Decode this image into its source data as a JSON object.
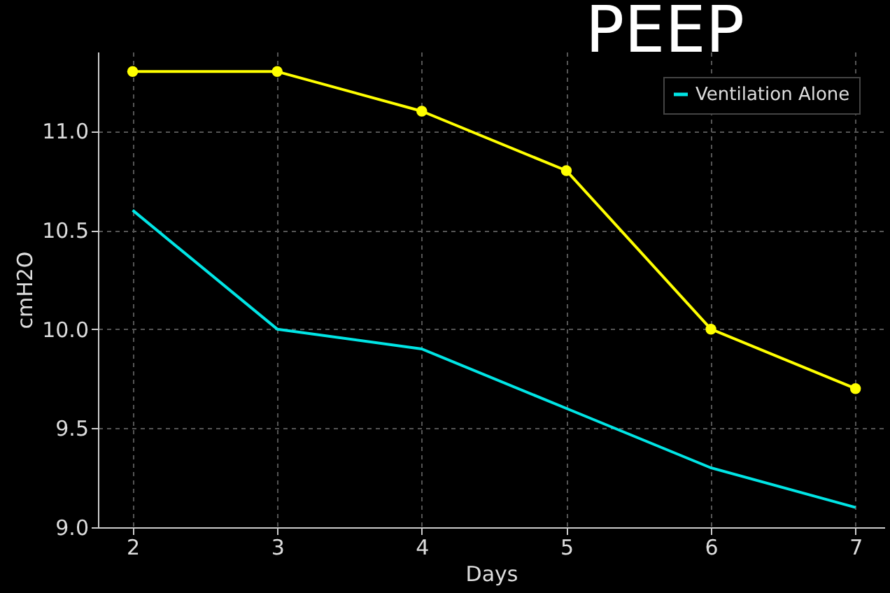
{
  "chart_data": {
    "type": "line",
    "title": "PEEP",
    "xlabel": "Days",
    "ylabel": "cmH2O",
    "x": [
      2,
      3,
      4,
      5,
      6,
      7
    ],
    "series": [
      {
        "color": "#ffff00",
        "marker": "circle",
        "values": [
          11.3,
          11.3,
          11.1,
          10.8,
          10.0,
          9.7
        ]
      },
      {
        "name": "Ventilation Alone",
        "color": "#00e5e5",
        "marker": "none",
        "values": [
          10.6,
          10.0,
          9.9,
          9.6,
          9.3,
          9.1
        ]
      }
    ],
    "xlim": [
      1.76,
      7.2
    ],
    "xticks": [
      2,
      3,
      4,
      5,
      6,
      7
    ],
    "ylim": [
      9.0,
      11.4
    ],
    "yticks": [
      {
        "value": 9,
        "label": "9.0"
      },
      9.5,
      {
        "value": 10,
        "label": "10.0"
      },
      10.5,
      {
        "value": 11,
        "label": "11.0"
      }
    ],
    "grid": true,
    "legend": "top right"
  }
}
